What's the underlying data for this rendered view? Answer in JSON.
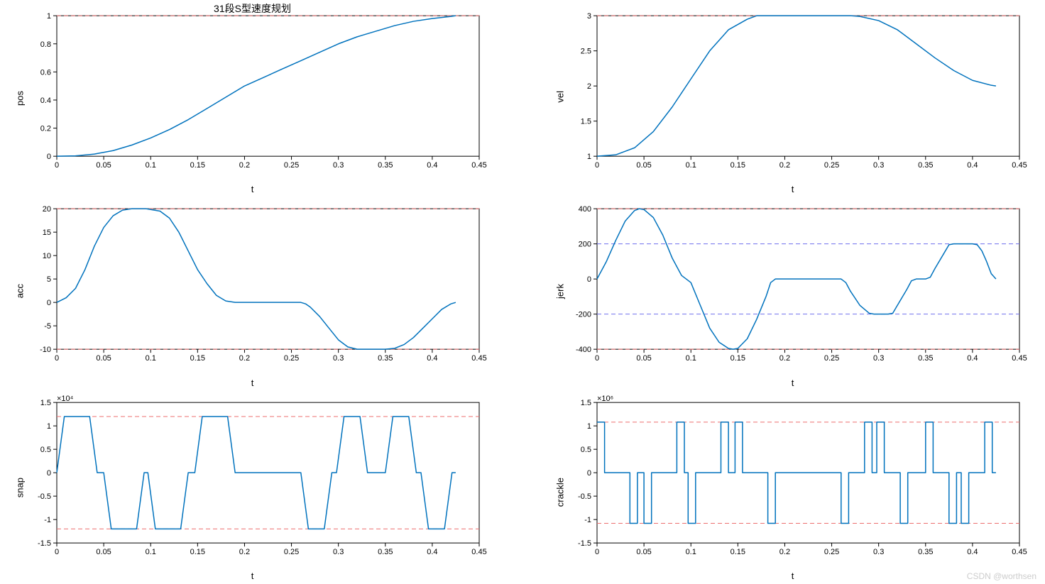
{
  "figure_title": "31段S型速度规划",
  "background_color": "#ffffff",
  "watermark": "CSDN @worthsen",
  "line_color": "#0072bd",
  "line_width": 1.5,
  "dash_red": "#ed6f6f",
  "dash_blue": "#6f6fed",
  "axis_color": "#000000",
  "tick_fontsize": 11,
  "label_fontsize": 13,
  "panels": {
    "pos": {
      "ylabel": "pos",
      "xlabel": "t",
      "xlim": [
        0,
        0.45
      ],
      "xticks": [
        0,
        0.05,
        0.1,
        0.15,
        0.2,
        0.25,
        0.3,
        0.35,
        0.4,
        0.45
      ],
      "ylim": [
        0,
        1
      ],
      "yticks": [
        0,
        0.2,
        0.4,
        0.6,
        0.8,
        1
      ],
      "hlines": [
        {
          "y": 1,
          "color": "#ed6f6f"
        }
      ],
      "data": [
        [
          0,
          0
        ],
        [
          0.02,
          0.003
        ],
        [
          0.04,
          0.015
        ],
        [
          0.06,
          0.04
        ],
        [
          0.08,
          0.08
        ],
        [
          0.1,
          0.13
        ],
        [
          0.12,
          0.19
        ],
        [
          0.14,
          0.26
        ],
        [
          0.16,
          0.34
        ],
        [
          0.18,
          0.42
        ],
        [
          0.2,
          0.5
        ],
        [
          0.22,
          0.56
        ],
        [
          0.24,
          0.62
        ],
        [
          0.26,
          0.68
        ],
        [
          0.28,
          0.74
        ],
        [
          0.3,
          0.8
        ],
        [
          0.32,
          0.85
        ],
        [
          0.34,
          0.89
        ],
        [
          0.36,
          0.93
        ],
        [
          0.38,
          0.96
        ],
        [
          0.4,
          0.98
        ],
        [
          0.42,
          0.995
        ],
        [
          0.425,
          1.0
        ]
      ]
    },
    "vel": {
      "ylabel": "vel",
      "xlabel": "t",
      "xlim": [
        0,
        0.45
      ],
      "xticks": [
        0,
        0.05,
        0.1,
        0.15,
        0.2,
        0.25,
        0.3,
        0.35,
        0.4,
        0.45
      ],
      "ylim": [
        1,
        3
      ],
      "yticks": [
        1,
        1.5,
        2,
        2.5,
        3
      ],
      "hlines": [
        {
          "y": 3,
          "color": "#ed6f6f"
        }
      ],
      "data": [
        [
          0,
          1.0
        ],
        [
          0.02,
          1.02
        ],
        [
          0.04,
          1.12
        ],
        [
          0.06,
          1.35
        ],
        [
          0.08,
          1.7
        ],
        [
          0.1,
          2.1
        ],
        [
          0.12,
          2.5
        ],
        [
          0.14,
          2.8
        ],
        [
          0.16,
          2.95
        ],
        [
          0.17,
          3.0
        ],
        [
          0.2,
          3.0
        ],
        [
          0.24,
          3.0
        ],
        [
          0.27,
          3.0
        ],
        [
          0.28,
          2.99
        ],
        [
          0.3,
          2.93
        ],
        [
          0.32,
          2.8
        ],
        [
          0.34,
          2.6
        ],
        [
          0.36,
          2.4
        ],
        [
          0.38,
          2.22
        ],
        [
          0.4,
          2.08
        ],
        [
          0.42,
          2.01
        ],
        [
          0.425,
          2.0
        ]
      ]
    },
    "acc": {
      "ylabel": "acc",
      "xlabel": "t",
      "xlim": [
        0,
        0.45
      ],
      "xticks": [
        0,
        0.05,
        0.1,
        0.15,
        0.2,
        0.25,
        0.3,
        0.35,
        0.4,
        0.45
      ],
      "ylim": [
        -10,
        20
      ],
      "yticks": [
        -10,
        -5,
        0,
        5,
        10,
        15,
        20
      ],
      "hlines": [
        {
          "y": 20,
          "color": "#ed6f6f"
        },
        {
          "y": -10,
          "color": "#ed6f6f"
        }
      ],
      "data": [
        [
          0,
          0
        ],
        [
          0.01,
          1
        ],
        [
          0.02,
          3
        ],
        [
          0.03,
          7
        ],
        [
          0.04,
          12
        ],
        [
          0.05,
          16
        ],
        [
          0.06,
          18.5
        ],
        [
          0.07,
          19.7
        ],
        [
          0.08,
          20
        ],
        [
          0.095,
          20
        ],
        [
          0.11,
          19.5
        ],
        [
          0.12,
          18
        ],
        [
          0.13,
          15
        ],
        [
          0.14,
          11
        ],
        [
          0.15,
          7
        ],
        [
          0.16,
          4
        ],
        [
          0.17,
          1.5
        ],
        [
          0.18,
          0.3
        ],
        [
          0.19,
          0
        ],
        [
          0.25,
          0
        ],
        [
          0.26,
          0
        ],
        [
          0.265,
          -0.3
        ],
        [
          0.27,
          -1
        ],
        [
          0.28,
          -3
        ],
        [
          0.29,
          -5.5
        ],
        [
          0.3,
          -8
        ],
        [
          0.31,
          -9.5
        ],
        [
          0.32,
          -10
        ],
        [
          0.35,
          -10
        ],
        [
          0.36,
          -9.8
        ],
        [
          0.37,
          -9
        ],
        [
          0.38,
          -7.5
        ],
        [
          0.39,
          -5.5
        ],
        [
          0.4,
          -3.5
        ],
        [
          0.41,
          -1.5
        ],
        [
          0.42,
          -0.3
        ],
        [
          0.425,
          0
        ]
      ]
    },
    "jerk": {
      "ylabel": "jerk",
      "xlabel": "t",
      "xlim": [
        0,
        0.45
      ],
      "xticks": [
        0,
        0.05,
        0.1,
        0.15,
        0.2,
        0.25,
        0.3,
        0.35,
        0.4,
        0.45
      ],
      "ylim": [
        -400,
        400
      ],
      "yticks": [
        -400,
        -200,
        0,
        200,
        400
      ],
      "hlines": [
        {
          "y": 400,
          "color": "#ed6f6f"
        },
        {
          "y": -400,
          "color": "#ed6f6f"
        },
        {
          "y": 200,
          "color": "#6f6fed"
        },
        {
          "y": -200,
          "color": "#6f6fed"
        }
      ],
      "data": [
        [
          0,
          0
        ],
        [
          0.01,
          100
        ],
        [
          0.02,
          220
        ],
        [
          0.03,
          330
        ],
        [
          0.04,
          390
        ],
        [
          0.045,
          400
        ],
        [
          0.05,
          395
        ],
        [
          0.06,
          350
        ],
        [
          0.07,
          250
        ],
        [
          0.08,
          120
        ],
        [
          0.09,
          20
        ],
        [
          0.095,
          0
        ],
        [
          0.1,
          -20
        ],
        [
          0.11,
          -150
        ],
        [
          0.12,
          -280
        ],
        [
          0.13,
          -360
        ],
        [
          0.14,
          -395
        ],
        [
          0.145,
          -400
        ],
        [
          0.15,
          -395
        ],
        [
          0.16,
          -340
        ],
        [
          0.17,
          -230
        ],
        [
          0.18,
          -100
        ],
        [
          0.185,
          -20
        ],
        [
          0.19,
          0
        ],
        [
          0.25,
          0
        ],
        [
          0.26,
          0
        ],
        [
          0.265,
          -20
        ],
        [
          0.27,
          -70
        ],
        [
          0.28,
          -150
        ],
        [
          0.29,
          -195
        ],
        [
          0.295,
          -200
        ],
        [
          0.31,
          -200
        ],
        [
          0.315,
          -195
        ],
        [
          0.32,
          -150
        ],
        [
          0.33,
          -60
        ],
        [
          0.335,
          -10
        ],
        [
          0.34,
          0
        ],
        [
          0.35,
          0
        ],
        [
          0.355,
          10
        ],
        [
          0.36,
          60
        ],
        [
          0.37,
          150
        ],
        [
          0.375,
          195
        ],
        [
          0.38,
          200
        ],
        [
          0.4,
          200
        ],
        [
          0.405,
          195
        ],
        [
          0.41,
          160
        ],
        [
          0.415,
          100
        ],
        [
          0.42,
          30
        ],
        [
          0.425,
          0
        ]
      ]
    },
    "snap": {
      "ylabel": "snap",
      "xlabel": "t",
      "xlim": [
        0,
        0.45
      ],
      "xticks": [
        0,
        0.05,
        0.1,
        0.15,
        0.2,
        0.25,
        0.3,
        0.35,
        0.4,
        0.45
      ],
      "ylim": [
        -1.5,
        1.5
      ],
      "yticks": [
        -1.5,
        -1,
        -0.5,
        0,
        0.5,
        1,
        1.5
      ],
      "exponent": "×10⁴",
      "hlines": [
        {
          "y": 1.2,
          "color": "#ed6f6f"
        },
        {
          "y": -1.2,
          "color": "#ed6f6f"
        }
      ],
      "data": [
        [
          0,
          0
        ],
        [
          0.008,
          1.2
        ],
        [
          0.035,
          1.2
        ],
        [
          0.043,
          0
        ],
        [
          0.05,
          0
        ],
        [
          0.058,
          -1.2
        ],
        [
          0.085,
          -1.2
        ],
        [
          0.093,
          0
        ],
        [
          0.095,
          0
        ],
        [
          0.097,
          0
        ],
        [
          0.105,
          -1.2
        ],
        [
          0.132,
          -1.2
        ],
        [
          0.14,
          0
        ],
        [
          0.147,
          0
        ],
        [
          0.155,
          1.2
        ],
        [
          0.182,
          1.2
        ],
        [
          0.19,
          0
        ],
        [
          0.25,
          0
        ],
        [
          0.26,
          0
        ],
        [
          0.268,
          -1.2
        ],
        [
          0.285,
          -1.2
        ],
        [
          0.293,
          0
        ],
        [
          0.298,
          0
        ],
        [
          0.306,
          1.2
        ],
        [
          0.323,
          1.2
        ],
        [
          0.331,
          0
        ],
        [
          0.34,
          0
        ],
        [
          0.35,
          0
        ],
        [
          0.358,
          1.2
        ],
        [
          0.375,
          1.2
        ],
        [
          0.383,
          0
        ],
        [
          0.388,
          0
        ],
        [
          0.396,
          -1.2
        ],
        [
          0.413,
          -1.2
        ],
        [
          0.421,
          0
        ],
        [
          0.425,
          0
        ]
      ]
    },
    "crackle": {
      "ylabel": "crackle",
      "xlabel": "t",
      "xlim": [
        0,
        0.45
      ],
      "xticks": [
        0,
        0.05,
        0.1,
        0.15,
        0.2,
        0.25,
        0.3,
        0.35,
        0.4,
        0.45
      ],
      "ylim": [
        -1.5,
        1.5
      ],
      "yticks": [
        -1.5,
        -1,
        -0.5,
        0,
        0.5,
        1,
        1.5
      ],
      "exponent": "×10⁶",
      "hlines": [
        {
          "y": 1.08,
          "color": "#ed6f6f"
        },
        {
          "y": -1.08,
          "color": "#ed6f6f"
        }
      ],
      "data": [
        [
          0,
          1.08
        ],
        [
          0.008,
          1.08
        ],
        [
          0.008,
          0
        ],
        [
          0.035,
          0
        ],
        [
          0.035,
          -1.08
        ],
        [
          0.043,
          -1.08
        ],
        [
          0.043,
          0
        ],
        [
          0.05,
          0
        ],
        [
          0.05,
          -1.08
        ],
        [
          0.058,
          -1.08
        ],
        [
          0.058,
          0
        ],
        [
          0.085,
          0
        ],
        [
          0.085,
          1.08
        ],
        [
          0.093,
          1.08
        ],
        [
          0.093,
          0
        ],
        [
          0.097,
          0
        ],
        [
          0.097,
          -1.08
        ],
        [
          0.105,
          -1.08
        ],
        [
          0.105,
          0
        ],
        [
          0.132,
          0
        ],
        [
          0.132,
          1.08
        ],
        [
          0.14,
          1.08
        ],
        [
          0.14,
          0
        ],
        [
          0.147,
          0
        ],
        [
          0.147,
          1.08
        ],
        [
          0.155,
          1.08
        ],
        [
          0.155,
          0
        ],
        [
          0.182,
          0
        ],
        [
          0.182,
          -1.08
        ],
        [
          0.19,
          -1.08
        ],
        [
          0.19,
          0
        ],
        [
          0.26,
          0
        ],
        [
          0.26,
          -1.08
        ],
        [
          0.268,
          -1.08
        ],
        [
          0.268,
          0
        ],
        [
          0.285,
          0
        ],
        [
          0.285,
          1.08
        ],
        [
          0.293,
          1.08
        ],
        [
          0.293,
          0
        ],
        [
          0.298,
          0
        ],
        [
          0.298,
          1.08
        ],
        [
          0.306,
          1.08
        ],
        [
          0.306,
          0
        ],
        [
          0.323,
          0
        ],
        [
          0.323,
          -1.08
        ],
        [
          0.331,
          -1.08
        ],
        [
          0.331,
          0
        ],
        [
          0.35,
          0
        ],
        [
          0.35,
          1.08
        ],
        [
          0.358,
          1.08
        ],
        [
          0.358,
          0
        ],
        [
          0.375,
          0
        ],
        [
          0.375,
          -1.08
        ],
        [
          0.383,
          -1.08
        ],
        [
          0.383,
          0
        ],
        [
          0.388,
          0
        ],
        [
          0.388,
          -1.08
        ],
        [
          0.396,
          -1.08
        ],
        [
          0.396,
          0
        ],
        [
          0.413,
          0
        ],
        [
          0.413,
          1.08
        ],
        [
          0.421,
          1.08
        ],
        [
          0.421,
          0
        ],
        [
          0.425,
          0
        ]
      ]
    }
  },
  "layout_order": [
    "pos",
    "vel",
    "acc",
    "jerk",
    "snap",
    "crackle"
  ]
}
